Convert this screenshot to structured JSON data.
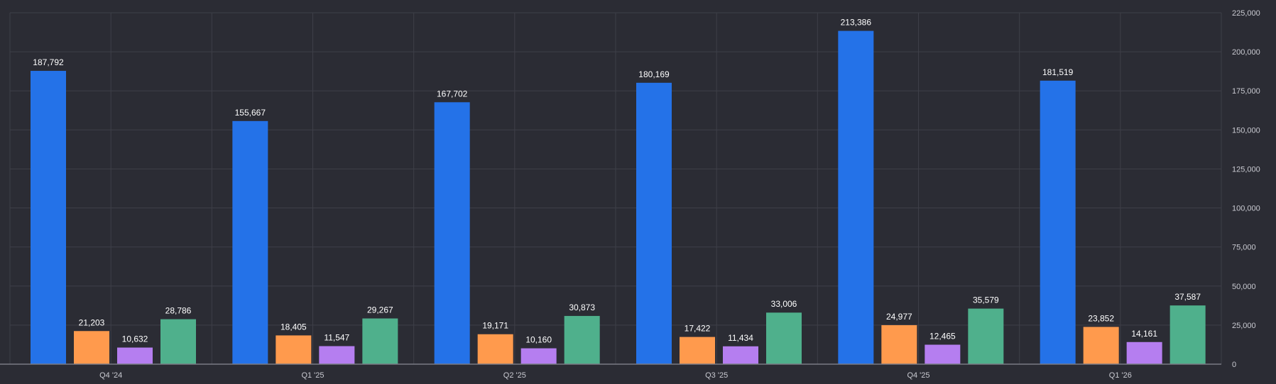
{
  "chart_data": {
    "type": "bar",
    "categories": [
      "Q4 '24",
      "Q1 '25",
      "Q2 '25",
      "Q3 '25",
      "Q4 '25",
      "Q1 '26"
    ],
    "series": [
      {
        "color": "#2472e8",
        "values": [
          187792,
          155667,
          167702,
          180169,
          213386,
          181519
        ]
      },
      {
        "color": "#ff9a4d",
        "values": [
          21203,
          18405,
          19171,
          17422,
          24977,
          23852
        ]
      },
      {
        "color": "#b57ef0",
        "values": [
          10632,
          11547,
          10160,
          11434,
          12465,
          14161
        ]
      },
      {
        "color": "#4fb08c",
        "values": [
          28786,
          29267,
          30873,
          33006,
          35579,
          37587
        ]
      }
    ],
    "value_labels": [
      [
        "187,792",
        "155,667",
        "167,702",
        "180,169",
        "213,386",
        "181,519"
      ],
      [
        "21,203",
        "18,405",
        "19,171",
        "17,422",
        "24,977",
        "23,852"
      ],
      [
        "10,632",
        "11,547",
        "10,160",
        "11,434",
        "12,465",
        "14,161"
      ],
      [
        "28,786",
        "29,267",
        "30,873",
        "33,006",
        "35,579",
        "37,587"
      ]
    ],
    "y_ticks": [
      0,
      25000,
      50000,
      75000,
      100000,
      125000,
      150000,
      175000,
      200000,
      225000
    ],
    "y_tick_labels": [
      "0",
      "25,000",
      "50,000",
      "75,000",
      "100,000",
      "125,000",
      "150,000",
      "175,000",
      "200,000",
      "225,000"
    ],
    "ylim": [
      0,
      225000
    ],
    "y_axis_position": "right",
    "grid": true,
    "title": "",
    "xlabel": "",
    "ylabel": ""
  }
}
